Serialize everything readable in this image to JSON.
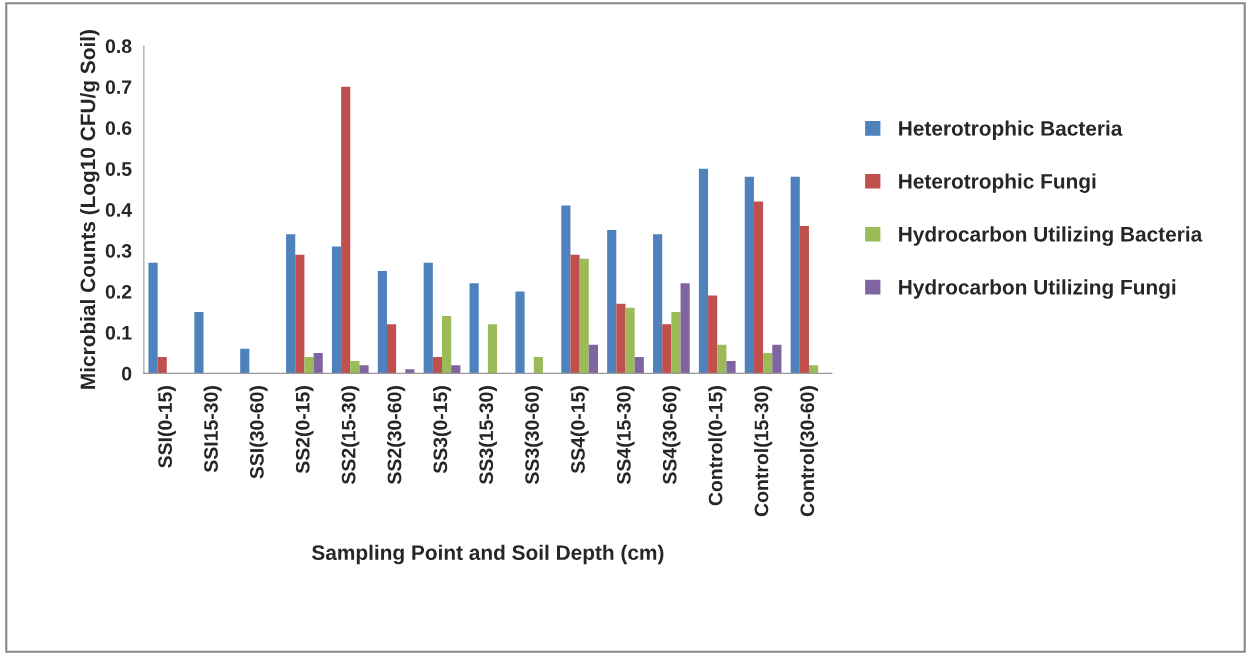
{
  "chart_data": {
    "type": "bar",
    "xlabel": "Sampling Point and Soil Depth (cm)",
    "ylabel": "Microbial Counts (Log10 CFU/g Soil)",
    "categories": [
      "SSI(0-15)",
      "SSI15-30)",
      "SSI(30-60)",
      "SS2(0-15)",
      "SS2(15-30)",
      "SS2(30-60)",
      "SS3(0-15)",
      "SS3(15-30)",
      "SS3(30-60)",
      "SS4(0-15)",
      "SS4(15-30)",
      "SS4(30-60)",
      "Control(0-15)",
      "Control(15-30)",
      "Control(30-60)"
    ],
    "series": [
      {
        "name": "Heterotrophic Bacteria",
        "color": "#4f81bd",
        "values": [
          0.27,
          0.15,
          0.06,
          0.34,
          0.31,
          0.25,
          0.27,
          0.22,
          0.2,
          0.41,
          0.35,
          0.34,
          0.5,
          0.48,
          0.48
        ]
      },
      {
        "name": "Heterotrophic Fungi",
        "color": "#c0504d",
        "values": [
          0.04,
          0,
          0,
          0.29,
          0.7,
          0.12,
          0.04,
          0,
          0,
          0.29,
          0.17,
          0.12,
          0.19,
          0.42,
          0.36
        ]
      },
      {
        "name": "Hydrocarbon Utilizing Bacteria",
        "color": "#9bbb59",
        "values": [
          0,
          0,
          0,
          0.04,
          0.03,
          0,
          0.14,
          0.12,
          0.04,
          0.28,
          0.16,
          0.15,
          0.07,
          0.05,
          0.02
        ]
      },
      {
        "name": "Hydrocarbon Utilizing Fungi",
        "color": "#8064a2",
        "values": [
          0,
          0,
          0,
          0.05,
          0.02,
          0.01,
          0.02,
          0,
          0,
          0.07,
          0.04,
          0.22,
          0.03,
          0.07,
          0
        ]
      }
    ],
    "ylim": [
      0,
      0.8
    ],
    "yticks": [
      0,
      0.1,
      0.2,
      0.3,
      0.4,
      0.5,
      0.6,
      0.7,
      0.8
    ],
    "grid": false,
    "legend": "right"
  }
}
